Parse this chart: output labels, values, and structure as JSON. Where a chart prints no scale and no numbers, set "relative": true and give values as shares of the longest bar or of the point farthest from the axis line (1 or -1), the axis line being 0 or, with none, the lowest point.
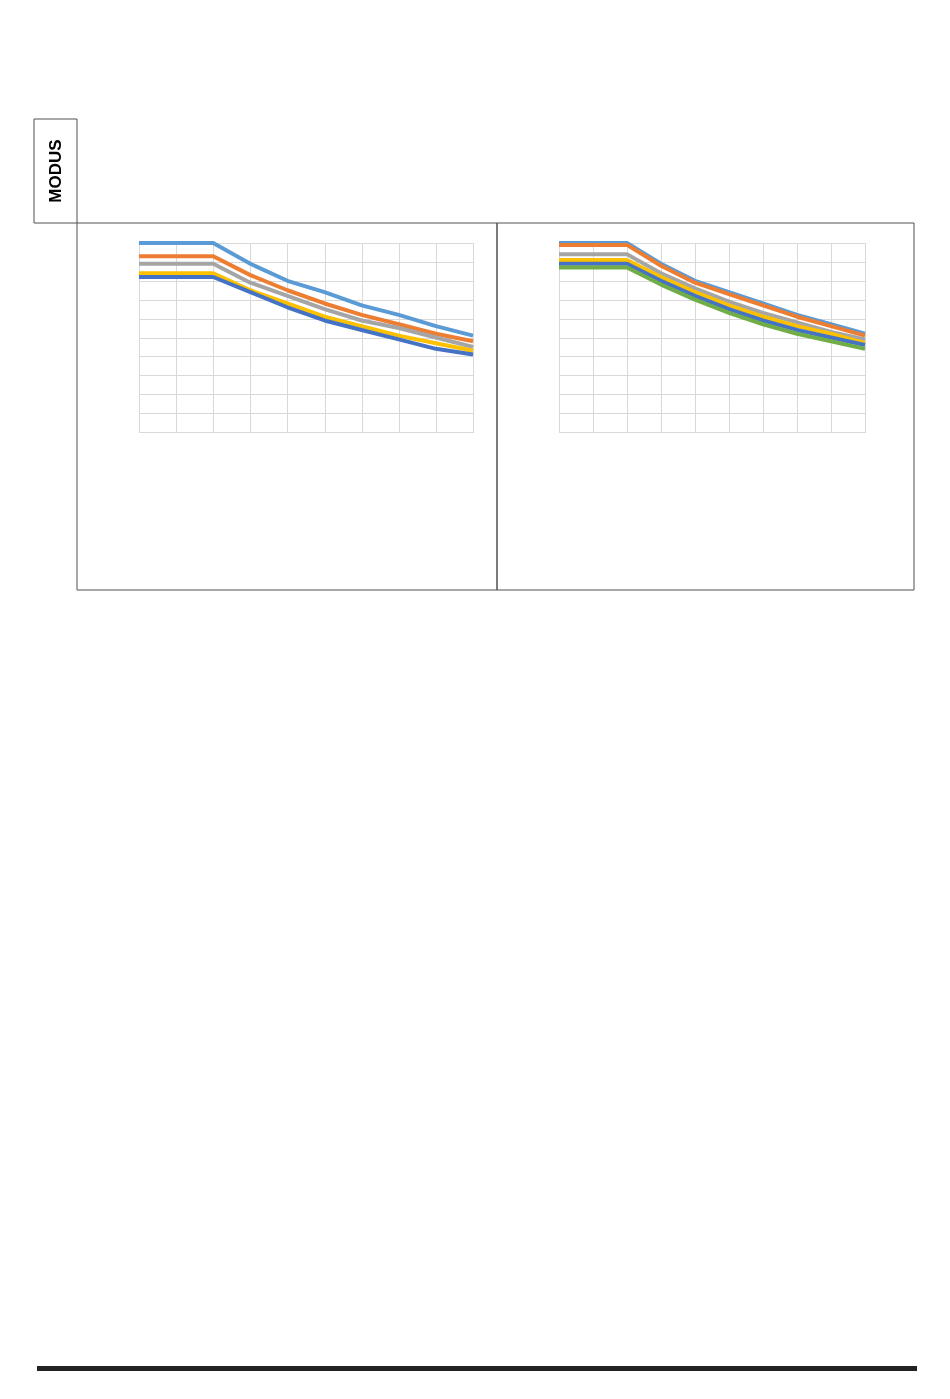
{
  "chart_data": [
    {
      "type": "other",
      "annotations": [
        "MODUS"
      ]
    },
    {
      "type": "line",
      "relative": true,
      "grid": true,
      "tick_labels": false,
      "line_style": "solid",
      "categories": [
        null,
        null,
        null,
        null,
        null,
        null,
        null,
        null,
        null,
        null
      ],
      "series": [
        {
          "color": "#5b9bd5",
          "values": [
            1,
            1,
            1,
            0.89,
            0.8,
            0.74,
            0.67,
            0.62,
            0.56,
            0.51
          ]
        },
        {
          "color": "#ed7d31",
          "values": [
            0.93,
            0.93,
            0.93,
            0.83,
            0.75,
            0.68,
            0.62,
            0.57,
            0.52,
            0.48
          ]
        },
        {
          "color": "#a5a5a5",
          "values": [
            0.89,
            0.89,
            0.89,
            0.79,
            0.72,
            0.65,
            0.59,
            0.55,
            0.5,
            0.45
          ]
        },
        {
          "color": "#ffc000",
          "values": [
            0.84,
            0.84,
            0.84,
            0.75,
            0.68,
            0.61,
            0.56,
            0.51,
            0.47,
            0.43
          ]
        },
        {
          "color": "#4472c4",
          "values": [
            0.82,
            0.82,
            0.82,
            0.74,
            0.66,
            0.59,
            0.54,
            0.49,
            0.44,
            0.41
          ]
        }
      ]
    },
    {
      "type": "line",
      "relative": true,
      "grid": true,
      "tick_labels": false,
      "line_style": "solid",
      "categories": [
        null,
        null,
        null,
        null,
        null,
        null,
        null,
        null,
        null,
        null
      ],
      "series": [
        {
          "color": "#5b9bd5",
          "values": [
            1,
            1,
            1,
            0.89,
            0.8,
            0.74,
            0.68,
            0.62,
            0.57,
            0.52
          ]
        },
        {
          "color": "#ed7d31",
          "values": [
            0.99,
            0.99,
            0.99,
            0.88,
            0.79,
            0.73,
            0.67,
            0.61,
            0.56,
            0.51
          ]
        },
        {
          "color": "#a5a5a5",
          "values": [
            0.94,
            0.94,
            0.94,
            0.84,
            0.76,
            0.69,
            0.63,
            0.58,
            0.53,
            0.49
          ]
        },
        {
          "color": "#ffc000",
          "values": [
            0.91,
            0.91,
            0.91,
            0.82,
            0.74,
            0.67,
            0.61,
            0.56,
            0.52,
            0.47
          ]
        },
        {
          "color": "#4472c4",
          "values": [
            0.89,
            0.89,
            0.89,
            0.8,
            0.72,
            0.65,
            0.59,
            0.54,
            0.5,
            0.46
          ]
        },
        {
          "color": "#70ad47",
          "values": [
            0.87,
            0.87,
            0.87,
            0.78,
            0.7,
            0.63,
            0.57,
            0.52,
            0.48,
            0.44
          ]
        }
      ]
    }
  ]
}
